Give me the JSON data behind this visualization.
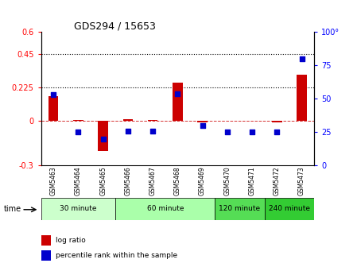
{
  "title": "GDS294 / 15653",
  "samples": [
    "GSM5463",
    "GSM5464",
    "GSM5465",
    "GSM5466",
    "GSM5467",
    "GSM5468",
    "GSM5469",
    "GSM5470",
    "GSM5471",
    "GSM5472",
    "GSM5473"
  ],
  "sample_short": [
    "5463",
    "5464",
    "5465",
    "5466",
    "5467",
    "5468",
    "5469",
    "5470",
    "5471",
    "5472",
    "5473"
  ],
  "log_ratio": [
    0.17,
    0.005,
    -0.2,
    0.01,
    0.005,
    0.26,
    -0.01,
    0.003,
    0.003,
    -0.008,
    0.31
  ],
  "percentile_rank": [
    53,
    25,
    20,
    26,
    26,
    54,
    30,
    25,
    25,
    25,
    80
  ],
  "ylim_left": [
    -0.3,
    0.6
  ],
  "ylim_right": [
    0,
    100
  ],
  "yticks_left": [
    -0.3,
    0.0,
    0.225,
    0.45,
    0.6
  ],
  "ytick_labels_left": [
    "-0.3",
    "0",
    "0.225",
    "0.45",
    "0.6"
  ],
  "yticks_right": [
    0,
    25,
    50,
    75,
    100
  ],
  "ytick_labels_right": [
    "0",
    "25",
    "50",
    "75",
    "100°"
  ],
  "hlines": [
    0.225,
    0.45
  ],
  "bar_color": "#cc0000",
  "dot_color": "#0000cc",
  "dashed_line_color": "#cc0000",
  "groups": [
    {
      "label": "30 minute",
      "start": 0,
      "end": 3,
      "color": "#ccffcc"
    },
    {
      "label": "60 minute",
      "start": 3,
      "end": 7,
      "color": "#aaffaa"
    },
    {
      "label": "120 minute",
      "start": 7,
      "end": 9,
      "color": "#55dd55"
    },
    {
      "label": "240 minute",
      "start": 9,
      "end": 11,
      "color": "#33cc33"
    }
  ],
  "time_label": "time",
  "legend_log_ratio": "log ratio",
  "legend_percentile": "percentile rank within the sample",
  "bg_color": "#ffffff",
  "sample_box_color": "#dddddd"
}
